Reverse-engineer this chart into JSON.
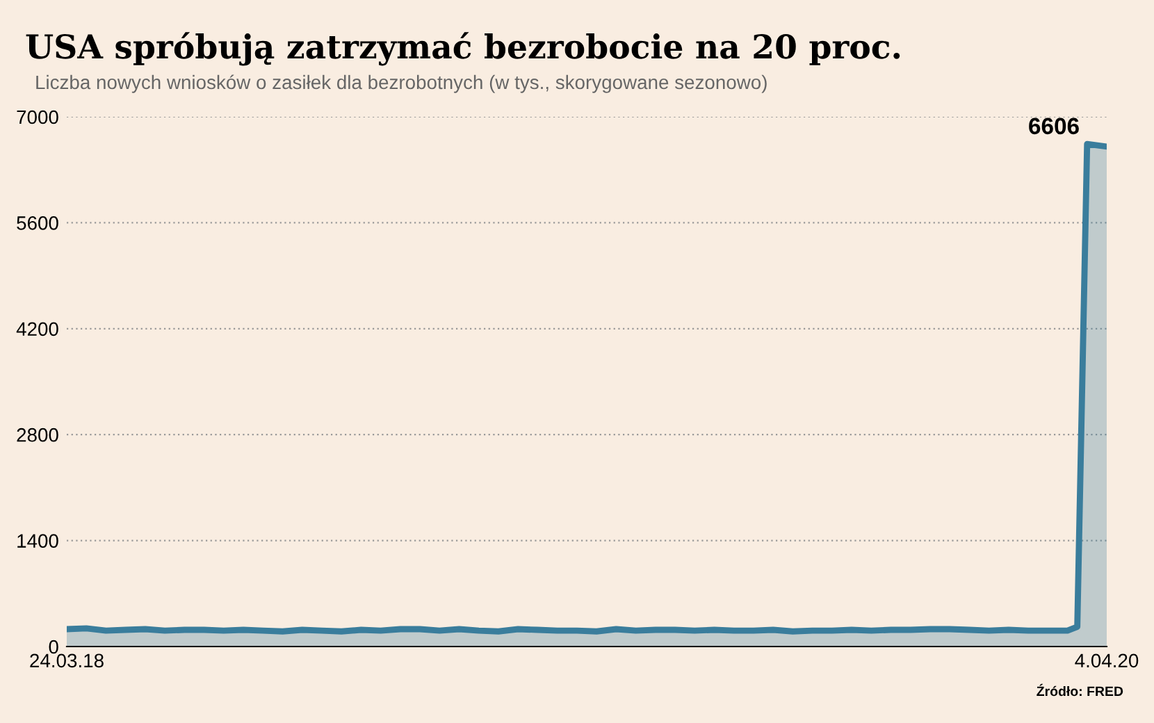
{
  "chart_data": {
    "type": "area",
    "title": "USA spróbują zatrzymać bezrobocie na 20 proc.",
    "subtitle": "Liczba nowych wniosków o zasiłek dla bezrobotnych (w tys., skorygowane sezonowo)",
    "x": [
      "2018-03-24",
      "2018-04-07",
      "2018-04-21",
      "2018-05-05",
      "2018-05-19",
      "2018-06-02",
      "2018-06-16",
      "2018-06-30",
      "2018-07-14",
      "2018-07-28",
      "2018-08-11",
      "2018-08-25",
      "2018-09-08",
      "2018-09-22",
      "2018-10-06",
      "2018-10-20",
      "2018-11-03",
      "2018-11-17",
      "2018-12-01",
      "2018-12-15",
      "2018-12-29",
      "2019-01-12",
      "2019-01-26",
      "2019-02-09",
      "2019-02-23",
      "2019-03-09",
      "2019-03-23",
      "2019-04-06",
      "2019-04-20",
      "2019-05-04",
      "2019-05-18",
      "2019-06-01",
      "2019-06-15",
      "2019-06-29",
      "2019-07-13",
      "2019-07-27",
      "2019-08-10",
      "2019-08-24",
      "2019-09-07",
      "2019-09-21",
      "2019-10-05",
      "2019-10-19",
      "2019-11-02",
      "2019-11-16",
      "2019-11-30",
      "2019-12-14",
      "2019-12-28",
      "2020-01-11",
      "2020-01-25",
      "2020-02-08",
      "2020-02-22",
      "2020-03-07",
      "2020-03-14",
      "2020-03-21",
      "2020-04-04"
    ],
    "series": [
      {
        "color": "#3a7d9c",
        "values": [
          230,
          240,
          210,
          220,
          230,
          210,
          220,
          220,
          210,
          220,
          210,
          200,
          220,
          210,
          200,
          220,
          210,
          230,
          230,
          210,
          230,
          210,
          200,
          230,
          220,
          210,
          210,
          200,
          230,
          210,
          220,
          220,
          210,
          220,
          210,
          210,
          220,
          200,
          210,
          210,
          220,
          210,
          220,
          220,
          230,
          230,
          220,
          210,
          220,
          210,
          210,
          210,
          260,
          6640,
          6606
        ]
      }
    ],
    "ylim": [
      0,
      7000
    ],
    "yticks": [
      0,
      1400,
      2800,
      4200,
      5600,
      7000
    ],
    "xlim": [
      "2018-03-24",
      "2020-04-04"
    ],
    "xticks": [
      {
        "value": "2018-03-24",
        "label": "24.03.18"
      },
      {
        "value": "2020-04-04",
        "label": "4.04.20"
      }
    ],
    "grid": "y",
    "annotations": [
      {
        "text": "6606",
        "x": "2020-04-04",
        "y": 6606
      },
      "Źródło: FRED"
    ]
  }
}
